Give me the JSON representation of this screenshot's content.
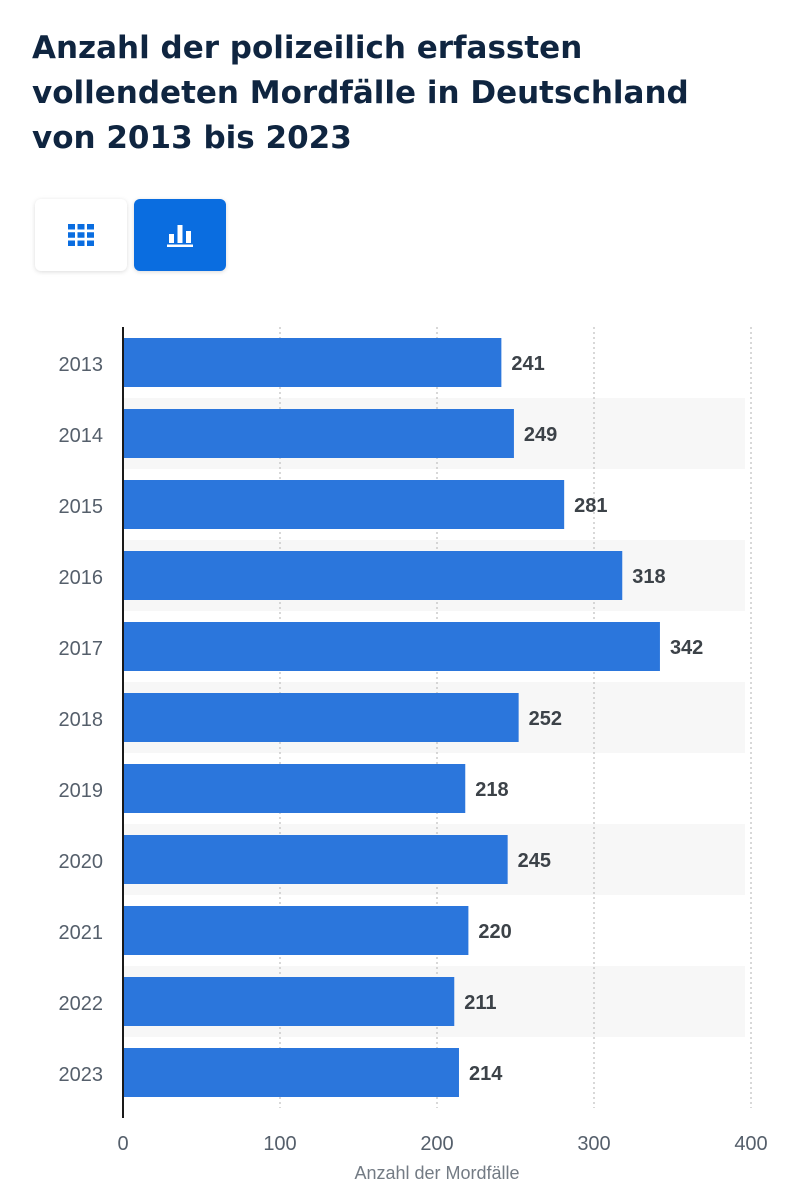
{
  "header": {
    "title": "Anzahl der polizeilich erfassten vollendeten Mordfälle in Deutschland von 2013 bis 2023"
  },
  "view_toggle": {
    "table_icon": "grid-icon",
    "chart_icon": "bar-chart-icon",
    "active": "chart",
    "accent_color": "#0a6de0"
  },
  "chart_data": {
    "type": "bar",
    "orientation": "horizontal",
    "categories": [
      "2013",
      "2014",
      "2015",
      "2016",
      "2017",
      "2018",
      "2019",
      "2020",
      "2021",
      "2022",
      "2023"
    ],
    "values": [
      241,
      249,
      281,
      318,
      342,
      252,
      218,
      245,
      220,
      211,
      214
    ],
    "xlabel": "Anzahl der Mordfälle",
    "ylabel": "",
    "xlim": [
      0,
      400
    ],
    "xticks": [
      0,
      100,
      200,
      300,
      400
    ],
    "grid": true,
    "data_labels": true,
    "bar_color": "#2b76dc"
  }
}
